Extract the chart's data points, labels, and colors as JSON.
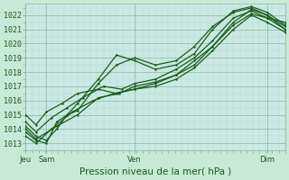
{
  "title": "",
  "xlabel": "Pression niveau de la mer( hPa )",
  "ylabel": "",
  "bg_color": "#c8e8d0",
  "plot_bg_color": "#c8e8e8",
  "grid_color_major": "#88bb99",
  "grid_color_minor": "#aaddcc",
  "line_color": "#1a5c1a",
  "ylim": [
    1012.5,
    1022.8
  ],
  "yticks": [
    1013,
    1014,
    1015,
    1016,
    1017,
    1018,
    1019,
    1020,
    1021,
    1022
  ],
  "xtick_labels": [
    "Jeu Sam",
    "Ven",
    "Dim"
  ],
  "xtick_positions": [
    0.08,
    0.42,
    0.93
  ],
  "lines": [
    {
      "x": [
        0.0,
        0.04,
        0.08,
        0.12,
        0.16,
        0.2,
        0.28,
        0.35,
        0.42,
        0.5,
        0.58,
        0.65,
        0.72,
        0.8,
        0.87,
        0.93,
        1.0
      ],
      "y": [
        1014.2,
        1013.5,
        1013.2,
        1014.0,
        1015.0,
        1015.3,
        1017.2,
        1018.5,
        1019.0,
        1018.5,
        1018.8,
        1019.8,
        1021.2,
        1022.2,
        1022.5,
        1022.0,
        1021.0
      ]
    },
    {
      "x": [
        0.0,
        0.04,
        0.08,
        0.12,
        0.16,
        0.2,
        0.28,
        0.35,
        0.42,
        0.5,
        0.58,
        0.65,
        0.72,
        0.8,
        0.87,
        0.93,
        1.0
      ],
      "y": [
        1013.8,
        1013.2,
        1013.0,
        1014.5,
        1015.0,
        1015.8,
        1017.5,
        1019.2,
        1018.8,
        1018.2,
        1018.5,
        1019.3,
        1021.0,
        1022.3,
        1022.6,
        1022.2,
        1021.3
      ]
    },
    {
      "x": [
        0.0,
        0.04,
        0.08,
        0.14,
        0.2,
        0.28,
        0.35,
        0.42,
        0.5,
        0.58,
        0.65,
        0.72,
        0.8,
        0.87,
        0.93,
        1.0
      ],
      "y": [
        1015.0,
        1014.3,
        1015.2,
        1015.8,
        1016.5,
        1016.8,
        1016.5,
        1016.8,
        1017.2,
        1017.8,
        1018.5,
        1019.8,
        1021.5,
        1022.4,
        1022.0,
        1021.2
      ]
    },
    {
      "x": [
        0.0,
        0.04,
        0.1,
        0.16,
        0.22,
        0.3,
        0.37,
        0.42,
        0.5,
        0.58,
        0.65,
        0.72,
        0.8,
        0.87,
        0.93,
        1.0
      ],
      "y": [
        1014.5,
        1013.8,
        1014.8,
        1015.5,
        1016.2,
        1017.0,
        1016.8,
        1017.2,
        1017.5,
        1018.2,
        1019.0,
        1020.2,
        1021.8,
        1022.3,
        1021.8,
        1021.0
      ]
    },
    {
      "x": [
        0.0,
        0.04,
        0.1,
        0.18,
        0.26,
        0.34,
        0.42,
        0.5,
        0.58,
        0.65,
        0.72,
        0.8,
        0.87,
        0.93,
        1.0
      ],
      "y": [
        1013.5,
        1013.0,
        1014.0,
        1015.2,
        1016.0,
        1016.5,
        1016.8,
        1017.0,
        1017.5,
        1018.3,
        1019.5,
        1021.0,
        1022.0,
        1021.5,
        1020.8
      ]
    },
    {
      "x": [
        0.0,
        0.04,
        0.12,
        0.2,
        0.28,
        0.36,
        0.42,
        0.5,
        0.58,
        0.65,
        0.72,
        0.8,
        0.87,
        0.93,
        1.0
      ],
      "y": [
        1014.0,
        1013.3,
        1014.2,
        1015.0,
        1016.2,
        1016.5,
        1017.0,
        1017.3,
        1017.8,
        1018.8,
        1019.8,
        1021.3,
        1022.1,
        1021.8,
        1021.5
      ]
    }
  ],
  "linewidth": 0.9,
  "markersize": 1.5,
  "label_fontsize": 7,
  "tick_fontsize": 6,
  "xlabel_fontsize": 7.5
}
